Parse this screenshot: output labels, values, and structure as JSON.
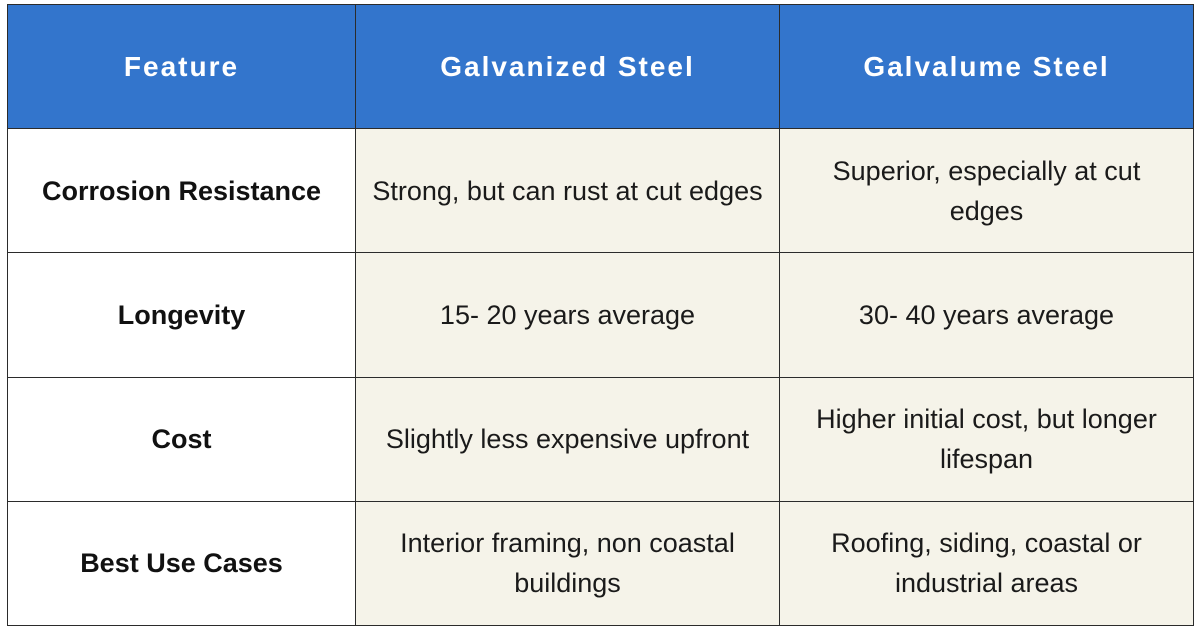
{
  "header": {
    "feature": "Feature",
    "galvanized": "Galvanized Steel",
    "galvalume": "Galvalume Steel"
  },
  "rows": [
    {
      "feature": "Corrosion Resistance",
      "galvanized": "Strong, but can rust at cut edges",
      "galvalume": "Superior, especially at cut edges"
    },
    {
      "feature": "Longevity",
      "galvanized": "15- 20 years average",
      "galvalume": "30- 40 years average"
    },
    {
      "feature": "Cost",
      "galvanized": "Slightly less expensive upfront",
      "galvalume": "Higher initial cost, but longer lifespan"
    },
    {
      "feature": "Best Use Cases",
      "galvanized": "Interior framing, non coastal buildings",
      "galvalume": "Roofing, siding, coastal or industrial areas"
    }
  ],
  "colors": {
    "header_bg": "#3375cc",
    "header_text": "#ffffff",
    "value_cell_bg": "#f5f3e9",
    "border": "#2b2b2b"
  }
}
